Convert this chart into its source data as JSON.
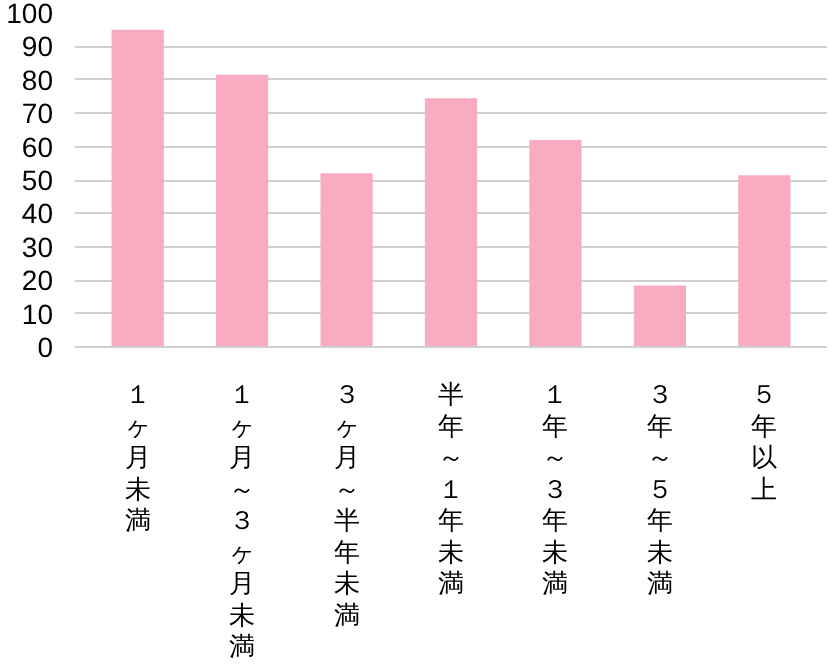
{
  "chart_data": {
    "type": "bar",
    "categories": [
      "１ヶ月未満",
      "１ヶ月～３ヶ月未満",
      "３ヶ月～半年未満",
      "半年～１年未満",
      "１年～３年未満",
      "３年～５年未満",
      "５年以上"
    ],
    "values": [
      95,
      81.5,
      52,
      74.5,
      62,
      18.4,
      51.4
    ],
    "color": "#f9abc2",
    "ylim": [
      0,
      100
    ],
    "yticks": [
      0,
      10,
      20,
      30,
      40,
      50,
      60,
      70,
      80,
      90,
      100
    ],
    "grid": "y"
  }
}
